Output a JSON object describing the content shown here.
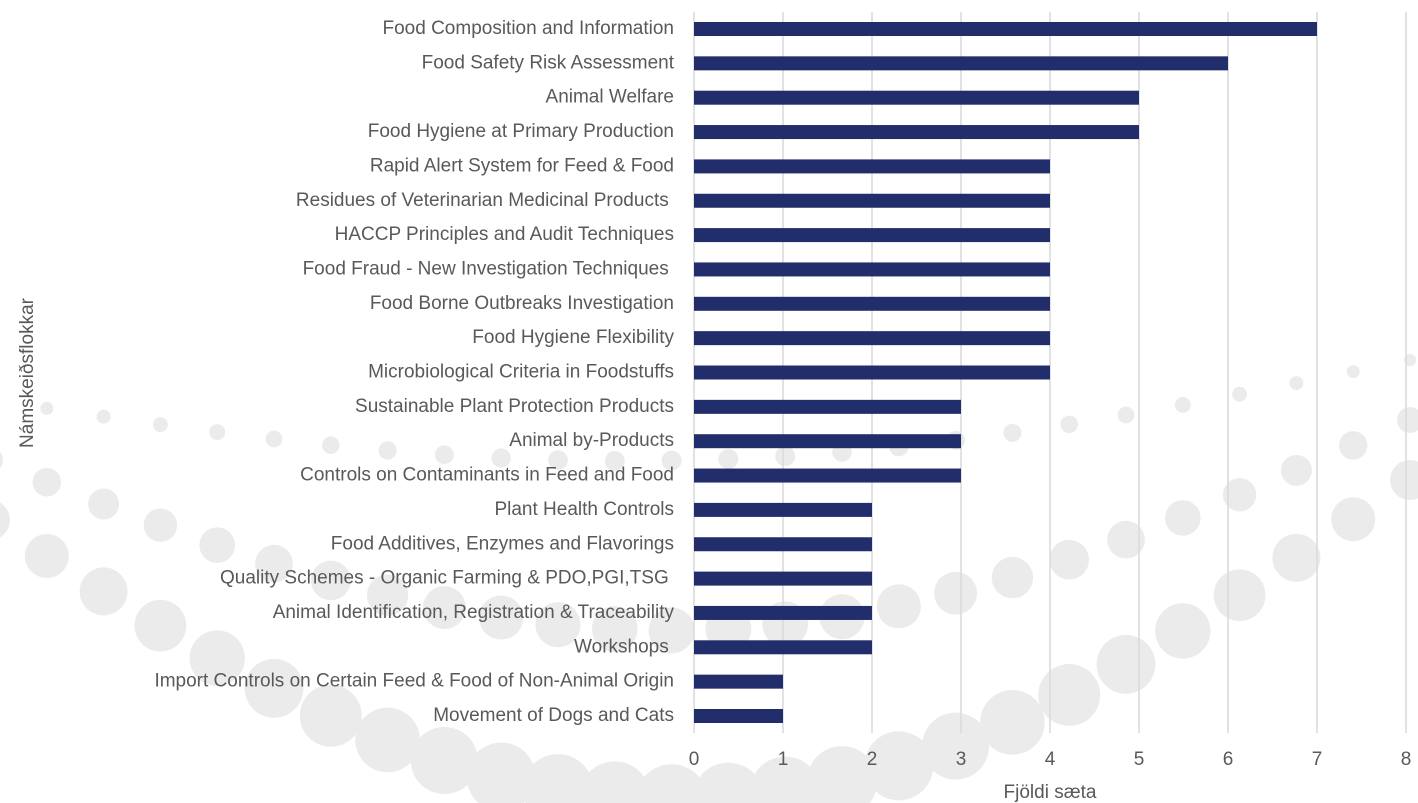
{
  "chart_data": {
    "type": "bar",
    "orientation": "horizontal",
    "x_label": "Fjöldi sæta",
    "y_label": "Námskeiðsflokkar",
    "categories": [
      "Food Composition and Information",
      "Food Safety Risk Assessment",
      "Animal Welfare",
      "Food Hygiene at Primary Production",
      "Rapid Alert System for Feed & Food",
      "Residues of Veterinarian Medicinal Products ",
      "HACCP Principles and Audit Techniques",
      "Food Fraud - New Investigation Techniques ",
      "Food Borne Outbreaks Investigation",
      "Food Hygiene Flexibility",
      "Microbiological Criteria in Foodstuffs",
      "Sustainable Plant Protection Products",
      "Animal by-Products",
      "Controls on Contaminants in Feed and Food",
      "Plant Health Controls",
      "Food Additives, Enzymes and Flavorings",
      "Quality Schemes - Organic Farming & PDO,PGI,TSG ",
      "Animal Identification, Registration & Traceability",
      "Workshops ",
      "Import Controls on Certain Feed & Food of Non-Animal Origin",
      "Movement of Dogs and Cats"
    ],
    "values": [
      7,
      6,
      5,
      5,
      4,
      4,
      4,
      4,
      4,
      4,
      4,
      3,
      3,
      3,
      2,
      2,
      2,
      2,
      2,
      1,
      1
    ],
    "color": "#222d6b",
    "xlim": [
      0,
      8
    ],
    "xticks": [
      0,
      1,
      2,
      3,
      4,
      5,
      6,
      7,
      8
    ],
    "grid": true
  }
}
